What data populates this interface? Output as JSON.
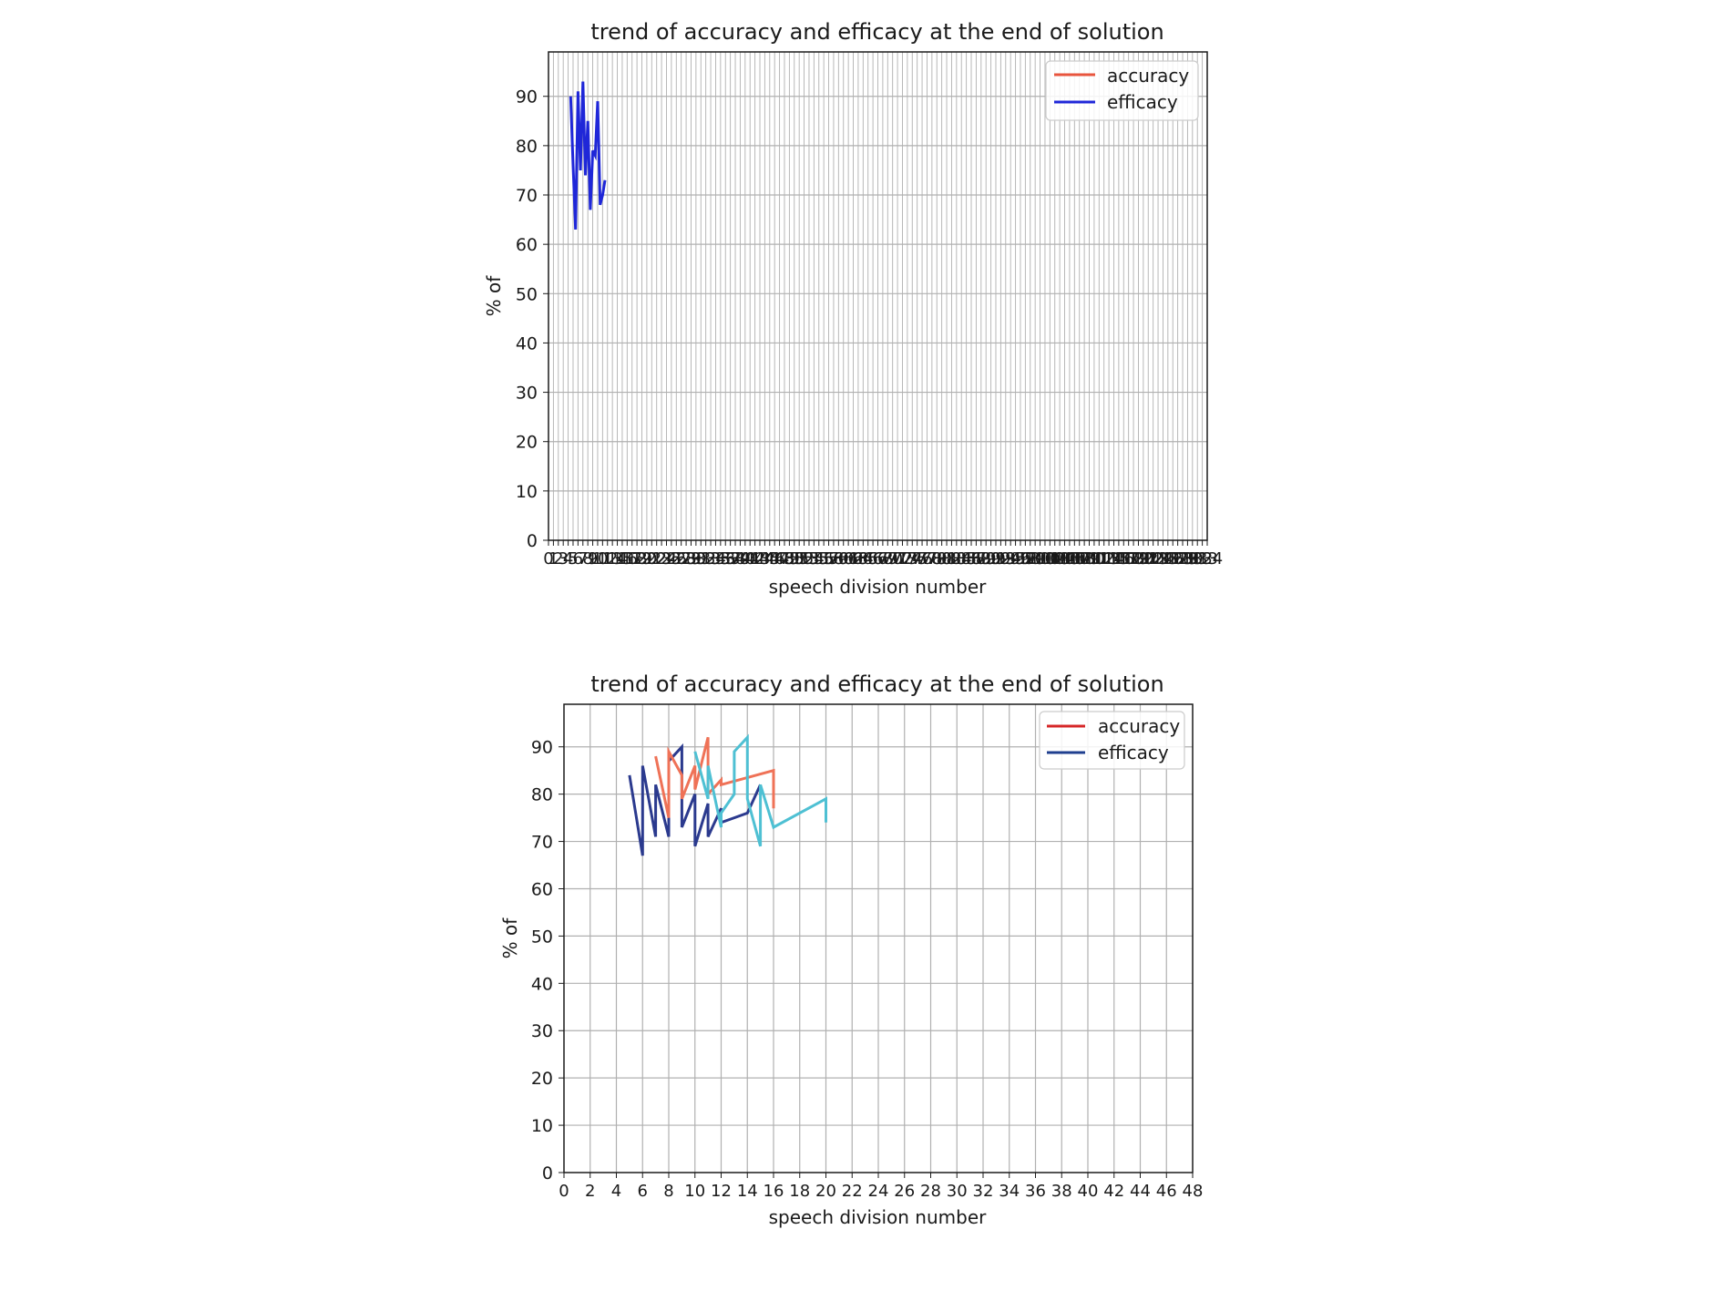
{
  "chart_data": [
    {
      "type": "line",
      "title": "trend of accuracy and efficacy at the end of solution",
      "xlabel": "speech division number",
      "ylabel": "% of",
      "xlim": [
        0,
        134
      ],
      "ylim": [
        0,
        99
      ],
      "yticks": [
        0,
        10,
        20,
        30,
        40,
        50,
        60,
        70,
        80,
        90
      ],
      "grid": true,
      "legend_position": "upper right",
      "legend": [
        {
          "name": "accuracy",
          "color": "#e8553e"
        },
        {
          "name": "efficacy",
          "color": "#1f27d8"
        }
      ],
      "x_tick_step": 1,
      "x_tick_label_max": 134,
      "series": [
        {
          "name": "efficacy",
          "color": "#1f27d8",
          "x": [
            4.5,
            5,
            5.5,
            6,
            6.5,
            7,
            7.5,
            8,
            8.5,
            9,
            9.5,
            10,
            10.5,
            11,
            11.5
          ],
          "y": [
            90,
            76,
            63,
            91,
            75,
            93,
            74,
            85,
            67,
            79,
            78,
            89,
            68,
            70,
            73
          ]
        }
      ]
    },
    {
      "type": "line",
      "title": "trend of accuracy and efficacy at the end of solution",
      "xlabel": "speech division number",
      "ylabel": "% of",
      "xlim": [
        0,
        48
      ],
      "ylim": [
        0,
        99
      ],
      "xticks": [
        0,
        2,
        4,
        6,
        8,
        10,
        12,
        14,
        16,
        18,
        20,
        22,
        24,
        26,
        28,
        30,
        32,
        34,
        36,
        38,
        40,
        42,
        44,
        46,
        48
      ],
      "yticks": [
        0,
        10,
        20,
        30,
        40,
        50,
        60,
        70,
        80,
        90
      ],
      "grid": true,
      "legend_position": "upper right",
      "legend": [
        {
          "name": "accuracy",
          "color": "#d62728"
        },
        {
          "name": "efficacy",
          "color": "#1f3f8f"
        }
      ],
      "series": [
        {
          "color": "#2b3a8e",
          "x": [
            5,
            6,
            6,
            7,
            7,
            8,
            8,
            9,
            9,
            10,
            10,
            11,
            11,
            12,
            12,
            13,
            14,
            15
          ],
          "y": [
            84,
            67,
            86,
            71,
            82,
            71,
            87,
            90,
            73,
            80,
            69,
            78,
            71,
            77,
            74,
            75,
            76,
            82
          ]
        },
        {
          "color": "#ef7257",
          "x": [
            7,
            8,
            8,
            9,
            9,
            10,
            10,
            11,
            11,
            12,
            12,
            16,
            16
          ],
          "y": [
            88,
            75,
            89,
            84,
            79,
            86,
            81,
            92,
            80,
            83,
            82,
            85,
            77
          ]
        },
        {
          "color": "#4ec0d3",
          "x": [
            10,
            11,
            11,
            12,
            12,
            13,
            13,
            14,
            14,
            15,
            15,
            16,
            20,
            20
          ],
          "y": [
            89,
            79,
            86,
            73,
            76,
            80,
            89,
            92,
            79,
            69,
            82,
            73,
            79,
            74
          ]
        }
      ]
    }
  ]
}
